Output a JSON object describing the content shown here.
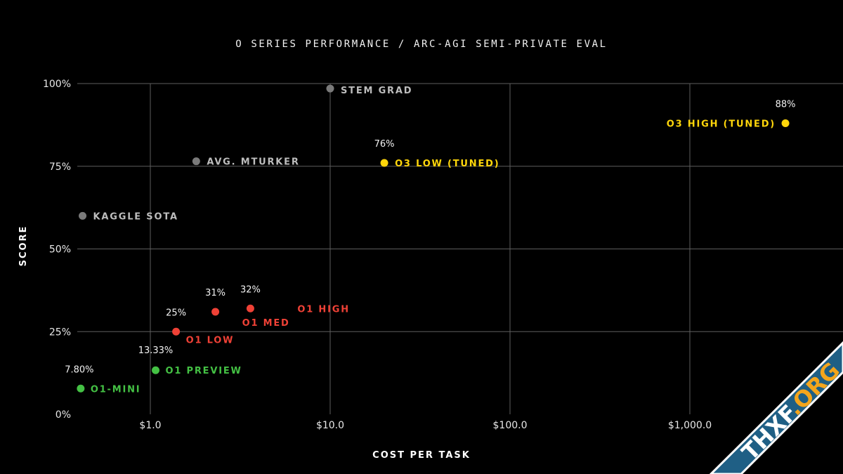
{
  "chart_data": {
    "type": "scatter",
    "title": "O SERIES PERFORMANCE / ARC-AGI SEMI-PRIVATE EVAL",
    "xlabel": "COST PER TASK",
    "ylabel": "SCORE",
    "x_scale": "log",
    "xlim": [
      0.41,
      60000
    ],
    "ylim": [
      0,
      100
    ],
    "x_ticks": [
      {
        "value": 1,
        "label": "$1.0"
      },
      {
        "value": 10,
        "label": "$10.0"
      },
      {
        "value": 100,
        "label": "$100.0"
      },
      {
        "value": 1000,
        "label": "$1,000.0"
      }
    ],
    "y_ticks": [
      {
        "value": 0,
        "label": "0%"
      },
      {
        "value": 25,
        "label": "25%"
      },
      {
        "value": 50,
        "label": "50%"
      },
      {
        "value": 75,
        "label": "75%"
      },
      {
        "value": 100,
        "label": "100%"
      }
    ],
    "grid": true,
    "colors": {
      "o3": "#ffd60a",
      "o1": "#ef4136",
      "preview": "#44c144",
      "human": "#7a7a7a",
      "human_label": "#bdbdbd"
    },
    "points": [
      {
        "label": "O1-MINI",
        "x": 0.41,
        "y": 7.8,
        "value_label": "7.80%",
        "group": "preview"
      },
      {
        "label": "O1 PREVIEW",
        "x": 1.07,
        "y": 13.33,
        "value_label": "13.33%",
        "group": "preview"
      },
      {
        "label": "O1 LOW",
        "x": 1.39,
        "y": 25,
        "value_label": "25%",
        "group": "o1"
      },
      {
        "label": "O1 MED",
        "x": 2.3,
        "y": 31,
        "value_label": "31%",
        "group": "o1"
      },
      {
        "label": "O1 HIGH",
        "x": 3.6,
        "y": 32,
        "value_label": "32%",
        "group": "o1"
      },
      {
        "label": "O3 LOW (TUNED)",
        "x": 20,
        "y": 76,
        "value_label": "76%",
        "group": "o3"
      },
      {
        "label": "O3 HIGH (TUNED)",
        "x": 3400,
        "y": 88,
        "value_label": "88%",
        "group": "o3"
      },
      {
        "label": "KAGGLE SOTA",
        "x": 0.42,
        "y": 60,
        "value_label": "",
        "group": "human"
      },
      {
        "label": "AVG. MTURKER",
        "x": 1.8,
        "y": 76.5,
        "value_label": "",
        "group": "human"
      },
      {
        "label": "STEM GRAD",
        "x": 10,
        "y": 98.5,
        "value_label": "",
        "group": "human"
      }
    ]
  },
  "watermark": {
    "text_main": "THXF",
    "text_accent": ".ORG",
    "colors": {
      "bg": "#1f5f85",
      "border": "#ffffff"
    }
  }
}
